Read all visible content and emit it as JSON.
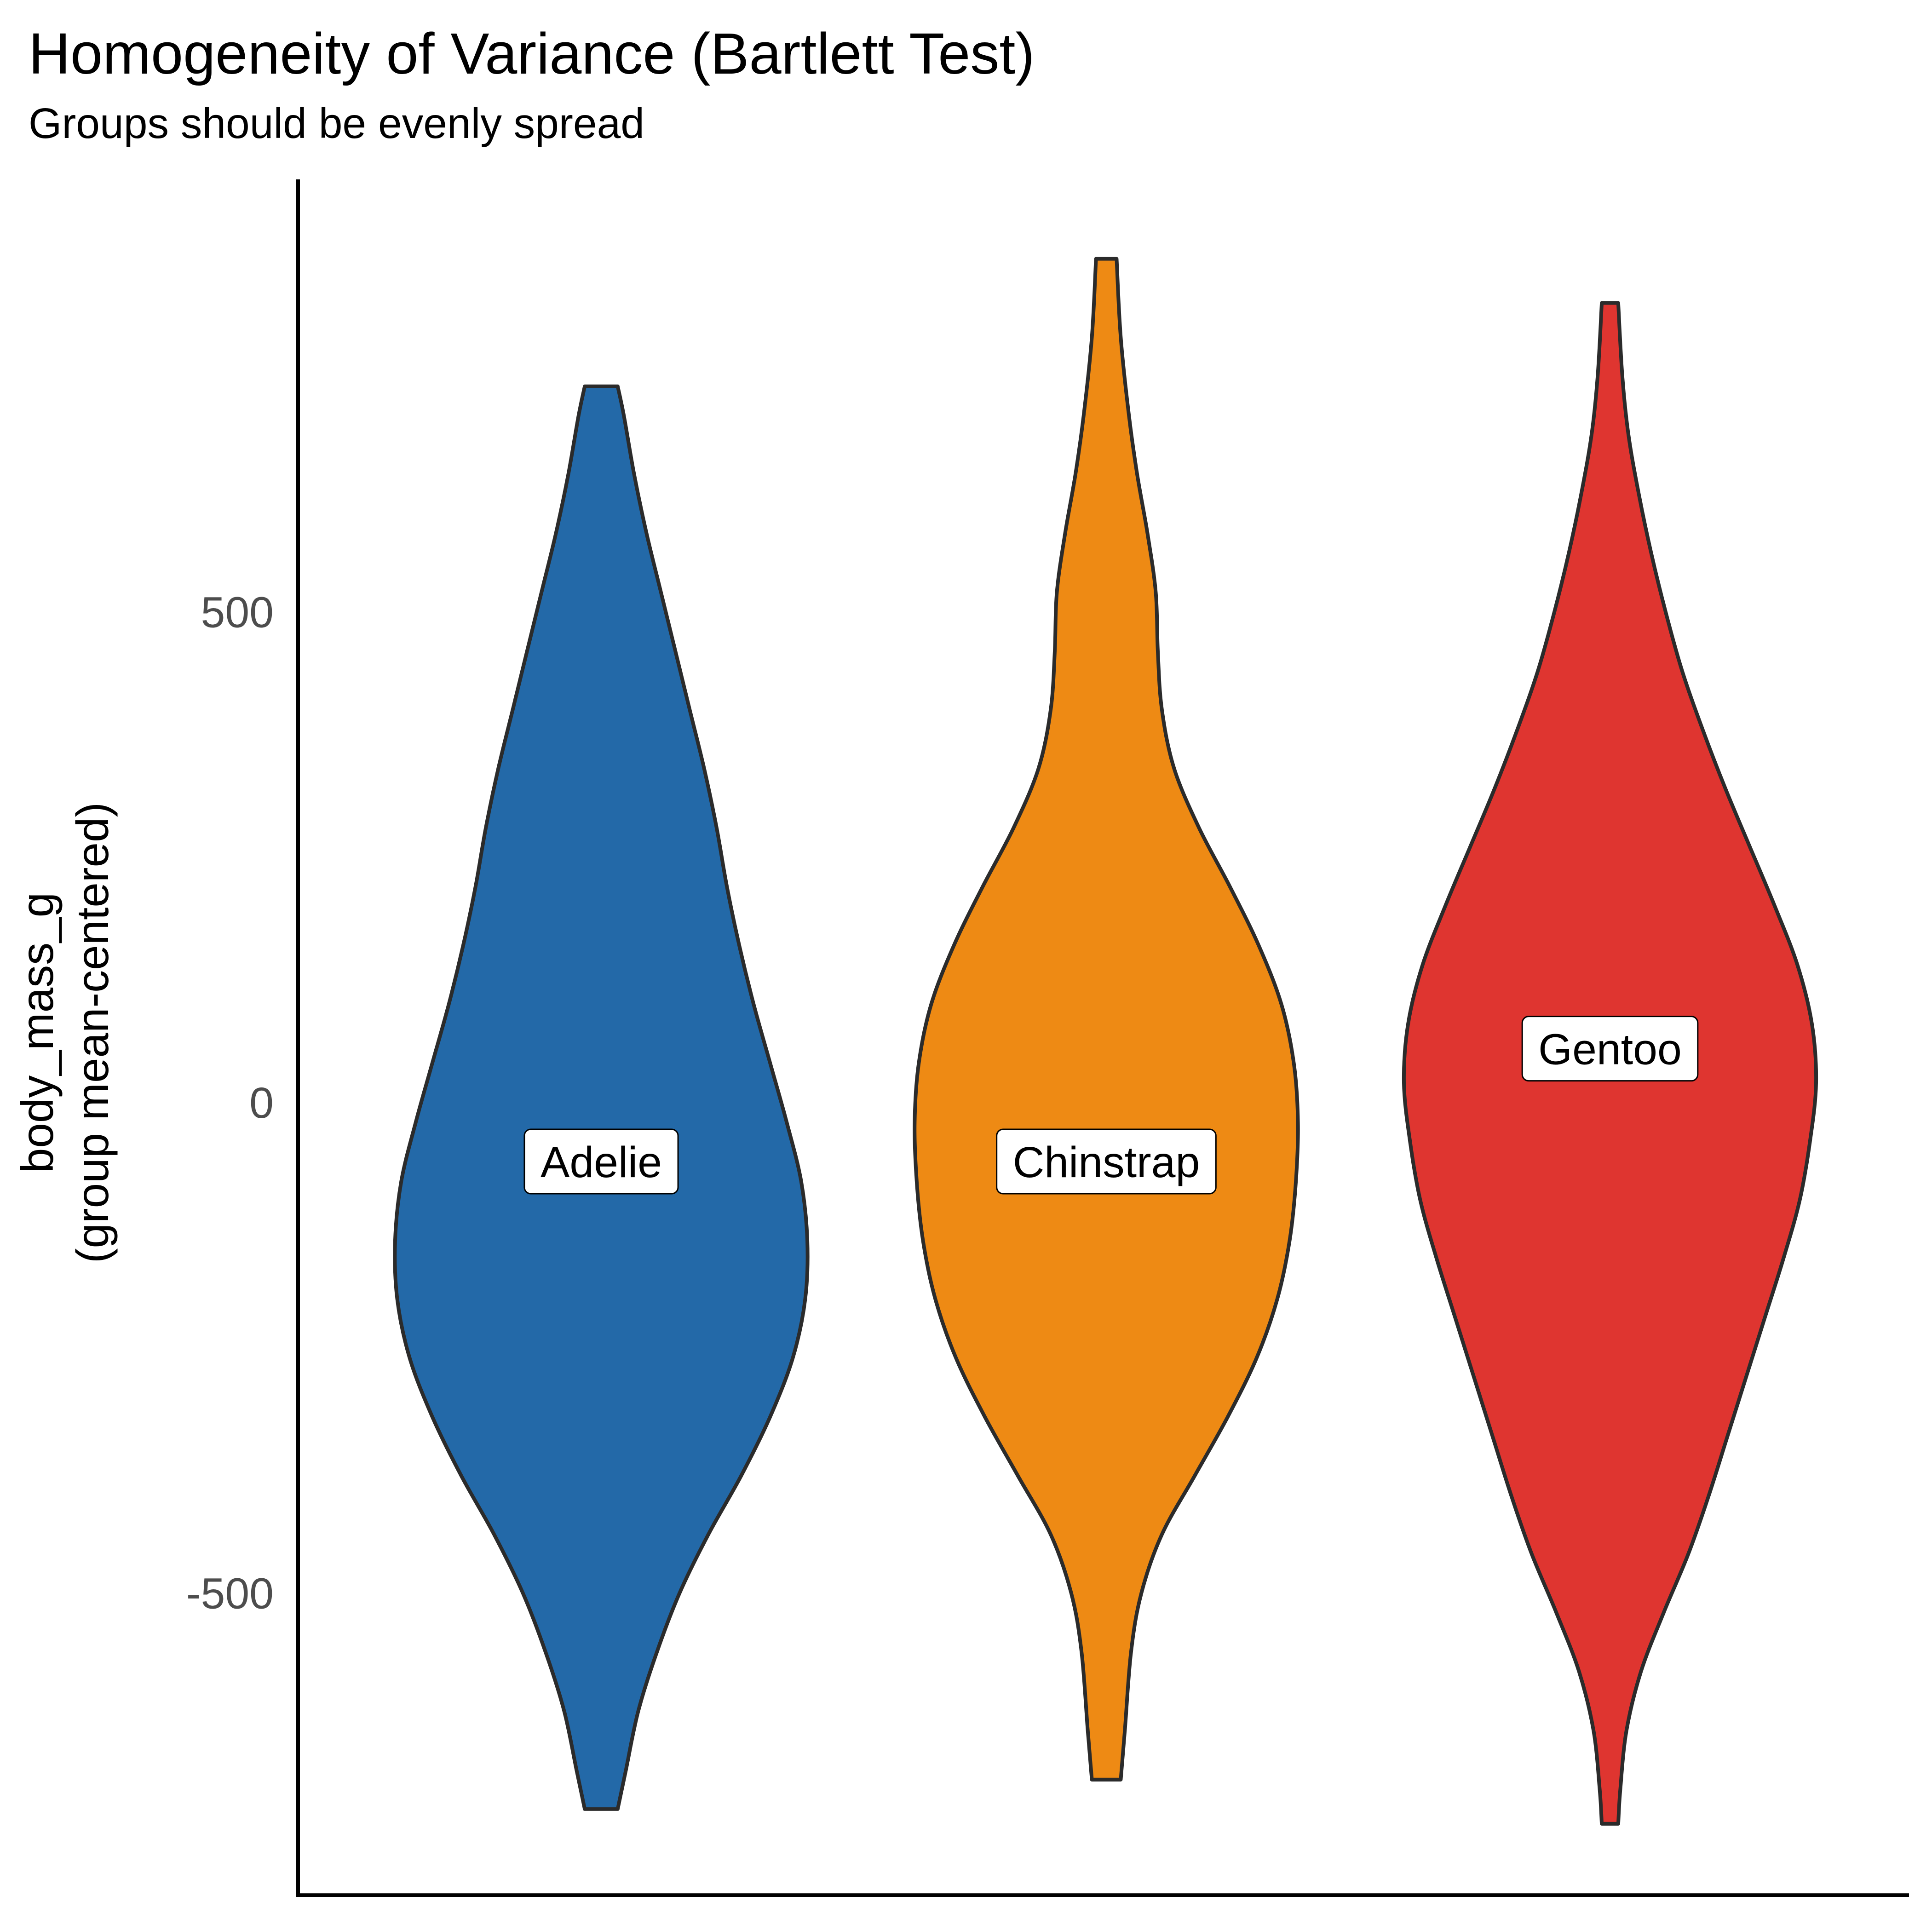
{
  "chart_data": {
    "type": "violin",
    "title": "Homogeneity of Variance (Bartlett Test)",
    "subtitle": "Groups should be evenly spread",
    "ylabel_lines": [
      "body_mass_g",
      "(group mean-centered)"
    ],
    "xlabel": "",
    "ylim": [
      -820,
      940
    ],
    "yticks": [
      500,
      0,
      -500
    ],
    "grid": false,
    "legend": "none",
    "groups": [
      {
        "name": "Adelie",
        "color": "#2369a8",
        "label_y": -60,
        "density": [
          [
            -720,
            0.08
          ],
          [
            -680,
            0.12
          ],
          [
            -620,
            0.18
          ],
          [
            -560,
            0.27
          ],
          [
            -500,
            0.38
          ],
          [
            -440,
            0.52
          ],
          [
            -380,
            0.68
          ],
          [
            -320,
            0.82
          ],
          [
            -260,
            0.93
          ],
          [
            -200,
            0.99
          ],
          [
            -140,
            1.0
          ],
          [
            -80,
            0.97
          ],
          [
            -20,
            0.9
          ],
          [
            40,
            0.82
          ],
          [
            100,
            0.74
          ],
          [
            160,
            0.67
          ],
          [
            220,
            0.61
          ],
          [
            280,
            0.56
          ],
          [
            340,
            0.5
          ],
          [
            400,
            0.43
          ],
          [
            460,
            0.36
          ],
          [
            520,
            0.29
          ],
          [
            580,
            0.22
          ],
          [
            640,
            0.16
          ],
          [
            700,
            0.11
          ],
          [
            730,
            0.08
          ]
        ]
      },
      {
        "name": "Chinstrap",
        "color": "#ee8a14",
        "label_y": -60,
        "density": [
          [
            -690,
            0.07
          ],
          [
            -640,
            0.09
          ],
          [
            -560,
            0.12
          ],
          [
            -500,
            0.17
          ],
          [
            -440,
            0.27
          ],
          [
            -380,
            0.43
          ],
          [
            -320,
            0.59
          ],
          [
            -260,
            0.73
          ],
          [
            -200,
            0.83
          ],
          [
            -140,
            0.89
          ],
          [
            -80,
            0.92
          ],
          [
            -20,
            0.93
          ],
          [
            40,
            0.91
          ],
          [
            100,
            0.85
          ],
          [
            160,
            0.74
          ],
          [
            220,
            0.6
          ],
          [
            280,
            0.45
          ],
          [
            340,
            0.33
          ],
          [
            400,
            0.27
          ],
          [
            460,
            0.25
          ],
          [
            520,
            0.24
          ],
          [
            580,
            0.2
          ],
          [
            640,
            0.15
          ],
          [
            700,
            0.11
          ],
          [
            780,
            0.07
          ],
          [
            860,
            0.05
          ]
        ]
      },
      {
        "name": "Gentoo",
        "color": "#df3530",
        "label_y": 55,
        "density": [
          [
            -735,
            0.04
          ],
          [
            -700,
            0.05
          ],
          [
            -640,
            0.08
          ],
          [
            -580,
            0.15
          ],
          [
            -520,
            0.26
          ],
          [
            -460,
            0.38
          ],
          [
            -400,
            0.48
          ],
          [
            -340,
            0.57
          ],
          [
            -280,
            0.66
          ],
          [
            -220,
            0.75
          ],
          [
            -160,
            0.84
          ],
          [
            -100,
            0.92
          ],
          [
            -40,
            0.97
          ],
          [
            20,
            1.0
          ],
          [
            80,
            0.98
          ],
          [
            140,
            0.91
          ],
          [
            200,
            0.8
          ],
          [
            260,
            0.68
          ],
          [
            320,
            0.56
          ],
          [
            380,
            0.45
          ],
          [
            440,
            0.35
          ],
          [
            500,
            0.27
          ],
          [
            560,
            0.2
          ],
          [
            620,
            0.14
          ],
          [
            680,
            0.09
          ],
          [
            740,
            0.06
          ],
          [
            815,
            0.04
          ]
        ]
      }
    ]
  }
}
